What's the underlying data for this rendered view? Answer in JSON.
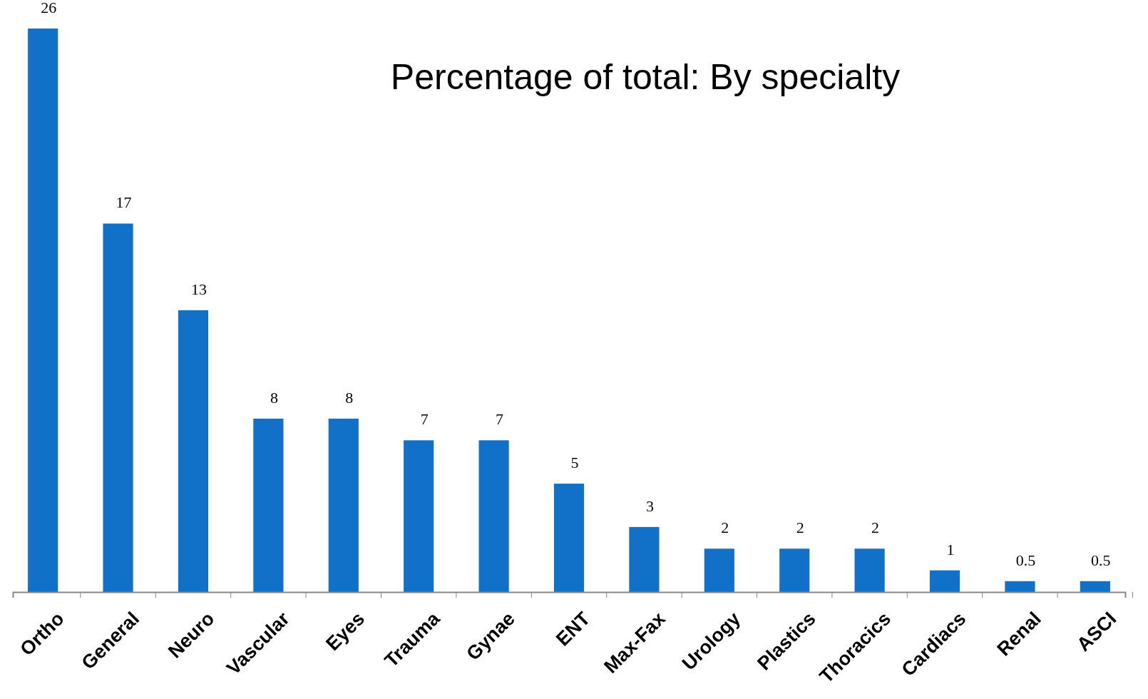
{
  "chart_data": {
    "type": "bar",
    "title": "Percentage of total: By specialty",
    "categories": [
      "Ortho",
      "General",
      "Neuro",
      "Vascular",
      "Eyes",
      "Trauma",
      "Gynae",
      "ENT",
      "Max-Fax",
      "Urology",
      "Plastics",
      "Thoracics",
      "Cardiacs",
      "Renal",
      "ASCI"
    ],
    "values": [
      26,
      17,
      13,
      8,
      8,
      7,
      7,
      5,
      3,
      2,
      2,
      2,
      1,
      0.5,
      0.5
    ],
    "color": "#1170c8",
    "data_labels": true
  }
}
